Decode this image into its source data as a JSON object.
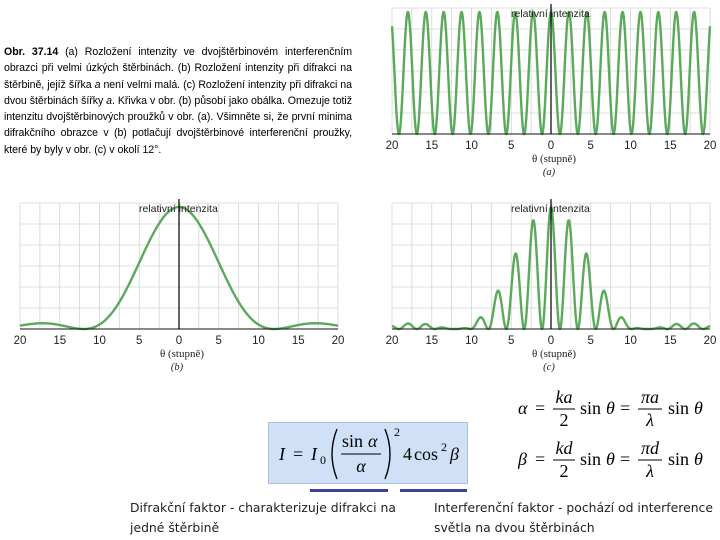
{
  "caption": {
    "label": "Obr. 37.14",
    "text_a": " (a) Rozložení intenzity ve dvojštěrbinovém interferenčním obrazci při velmi úzkých štěrbinách. (b) Rozložení intenzity při difrakci na štěrbině, jejíž šířka ",
    "var_a1": "a",
    "text_b": " není velmi malá. (c) Rozložení intenzity při difrakci na dvou štěrbinách šířky ",
    "var_a2": "a",
    "text_c": ". Křivka v obr. (b) působí jako obálka. Omezuje totiž intenzitu dvojštěrbinových proužků v obr. (a). Všimněte si, že první minima difrakčního obrazce v (b) potlačují dvojštěrbinové interferenční proužky, které by byly v obr. (c) v okolí 12°."
  },
  "figures": {
    "a": {
      "y_label": "relativní intenzita",
      "x_axis_label": "θ (stupně)",
      "sublabel": "(a)",
      "x_ticks": [
        "20",
        "15",
        "10",
        "5",
        "0",
        "5",
        "10",
        "15",
        "20"
      ]
    },
    "b": {
      "y_label": "relativní intenzita",
      "x_axis_label": "θ (stupně)",
      "sublabel": "(b)",
      "x_ticks": [
        "20",
        "15",
        "10",
        "5",
        "0",
        "5",
        "10",
        "15",
        "20"
      ]
    },
    "c": {
      "y_label": "relativní intenzita",
      "x_axis_label": "θ (stupně)",
      "sublabel": "(c)",
      "x_ticks": [
        "20",
        "15",
        "10",
        "5",
        "0",
        "5",
        "10",
        "15",
        "20"
      ]
    }
  },
  "chart_data": [
    {
      "type": "line",
      "panel": "a",
      "xlabel": "θ (stupně)",
      "ylabel": "relativní intenzita",
      "xlim": [
        -20,
        20
      ],
      "ylim": [
        0,
        1
      ],
      "x_tick_labels": [
        "20",
        "15",
        "10",
        "5",
        "0",
        "5",
        "10",
        "15",
        "20"
      ],
      "curve": "cos² interference fringes of constant height",
      "fringe_period_deg": 2.25,
      "max_intensity": 1,
      "grid": true,
      "color": "#5aaa5a"
    },
    {
      "type": "line",
      "panel": "b",
      "xlabel": "θ (stupně)",
      "ylabel": "relativní intenzita",
      "xlim": [
        -20,
        20
      ],
      "ylim": [
        0,
        1
      ],
      "x_tick_labels": [
        "20",
        "15",
        "10",
        "5",
        "0",
        "5",
        "10",
        "15",
        "20"
      ],
      "curve": "single-slit diffraction (sin α / α)²",
      "central_max": 1,
      "first_minima_deg": [
        -12,
        12
      ],
      "grid": true,
      "color": "#5aaa5a"
    },
    {
      "type": "line",
      "panel": "c",
      "xlabel": "θ (stupně)",
      "ylabel": "relativní intenzita",
      "xlim": [
        -20,
        20
      ],
      "ylim": [
        0,
        1
      ],
      "x_tick_labels": [
        "20",
        "15",
        "10",
        "5",
        "0",
        "5",
        "10",
        "15",
        "20"
      ],
      "curve": "double-slit fringes under diffraction envelope",
      "fringe_period_deg": 2.25,
      "envelope_first_minima_deg": [
        -12,
        12
      ],
      "grid": true,
      "color": "#5aaa5a"
    }
  ],
  "formula_main": {
    "I": "I",
    "eq": "=",
    "I0_base": "I",
    "I0_sub": "0",
    "sin": "sin",
    "alpha": "α",
    "exp": "2",
    "coef": "4",
    "cos": "cos",
    "cos_exp": "2",
    "beta": "β"
  },
  "formulas_right": {
    "alpha_line": {
      "lhs": "α",
      "eq1": "=",
      "num1": "ka",
      "den1": "2",
      "sin1": "sin",
      "theta1": "θ",
      "eq2": "=",
      "num2": "πa",
      "den2": "λ",
      "sin2": "sin",
      "theta2": "θ"
    },
    "beta_line": {
      "lhs": "β",
      "eq1": "=",
      "num1": "kd",
      "den1": "2",
      "sin1": "sin",
      "theta1": "θ",
      "eq2": "=",
      "num2": "πd",
      "den2": "λ",
      "sin2": "sin",
      "theta2": "θ"
    }
  },
  "notes": {
    "left": "Difrakční faktor - charakterizuje difrakci na jedné štěrbině",
    "right": "Interferenční faktor - pochází od interference světla na dvou štěrbinách"
  },
  "colors": {
    "curve": "#5aaa5a",
    "grid": "#d4d4d4",
    "formula_bg": "#cfe0f7",
    "underline": "#3d3f9a"
  }
}
